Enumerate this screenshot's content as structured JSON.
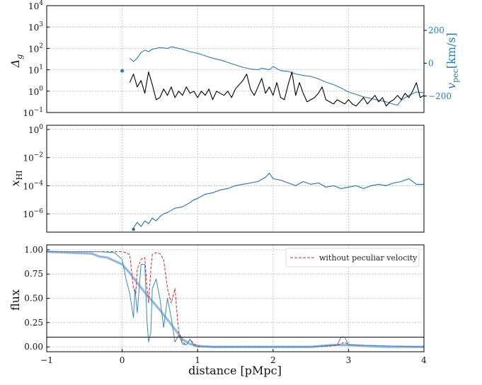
{
  "colors": {
    "density": "#000000",
    "velocity": "#2a7ab8",
    "xhi": "#1f6fb2",
    "flux_thin": "#3a8ac4",
    "flux_thick": "#92b9df",
    "no_pec": "#d62728",
    "threshold": "#000000",
    "grid": "#b8b8b8"
  },
  "chart_data": [
    {
      "id": "density-velocity",
      "type": "line",
      "x_range": [
        -1,
        4
      ],
      "y_left": {
        "label_main": "Δ",
        "label_sub": "g",
        "scale": "log",
        "range_exp": [
          -1,
          4
        ],
        "ticks": [
          {
            "b": "10",
            "e": "−1",
            "v": -1
          },
          {
            "b": "10",
            "e": "0",
            "v": 0
          },
          {
            "b": "10",
            "e": "1",
            "v": 1
          },
          {
            "b": "10",
            "e": "2",
            "v": 2
          },
          {
            "b": "10",
            "e": "3",
            "v": 3
          },
          {
            "b": "10",
            "e": "4",
            "v": 4
          }
        ]
      },
      "y_right": {
        "label_main": "v",
        "label_sub": "pec",
        "label_unit": "[km/s]",
        "range": [
          -300,
          350
        ],
        "ticks": [
          {
            "t": "200",
            "v": 200
          },
          {
            "t": "0",
            "v": 0
          },
          {
            "t": "−200",
            "v": -200
          }
        ]
      },
      "series": [
        {
          "key": "density",
          "axis": "left",
          "marker": {
            "x": 0.0,
            "y_exp": 0.95
          },
          "x": [
            0.1,
            0.15,
            0.2,
            0.25,
            0.3,
            0.35,
            0.4,
            0.45,
            0.5,
            0.55,
            0.6,
            0.65,
            0.7,
            0.75,
            0.8,
            0.85,
            0.9,
            0.95,
            1.0,
            1.05,
            1.1,
            1.15,
            1.2,
            1.25,
            1.3,
            1.35,
            1.4,
            1.45,
            1.5,
            1.55,
            1.6,
            1.65,
            1.7,
            1.75,
            1.8,
            1.85,
            1.9,
            1.95,
            2.0,
            2.05,
            2.1,
            2.15,
            2.2,
            2.25,
            2.3,
            2.35,
            2.4,
            2.45,
            2.5,
            2.55,
            2.6,
            2.65,
            2.7,
            2.75,
            2.8,
            2.85,
            2.9,
            2.95,
            3.0,
            3.05,
            3.1,
            3.15,
            3.2,
            3.25,
            3.3,
            3.35,
            3.4,
            3.45,
            3.5,
            3.55,
            3.6,
            3.65,
            3.7,
            3.75,
            3.8,
            3.85,
            3.9,
            3.95,
            4.0
          ],
          "y_exp": [
            0.4,
            0.8,
            0.2,
            0.5,
            -0.1,
            0.9,
            0.3,
            -0.4,
            -0.3,
            0.1,
            -0.2,
            0.2,
            -0.3,
            0.0,
            -0.2,
            0.2,
            -0.1,
            0.0,
            -0.3,
            0.0,
            -0.2,
            0.1,
            -0.4,
            0.0,
            -0.1,
            -0.2,
            0.0,
            -0.3,
            0.1,
            0.3,
            0.5,
            0.8,
            0.1,
            -0.2,
            0.2,
            0.6,
            -0.1,
            0.2,
            -0.2,
            0.4,
            -0.3,
            -0.4,
            0.3,
            0.9,
            -0.2,
            0.4,
            -0.1,
            -0.5,
            -0.4,
            -0.3,
            -0.1,
            0.2,
            -0.4,
            -0.5,
            -0.6,
            -0.4,
            -0.5,
            -0.6,
            -0.4,
            -0.6,
            -0.7,
            -0.5,
            -0.3,
            -0.6,
            -0.4,
            -0.2,
            -0.5,
            -0.3,
            -0.7,
            -0.5,
            -0.4,
            -0.2,
            -0.4,
            -0.1,
            -0.3,
            0.0,
            0.4,
            -0.3,
            -0.2
          ]
        },
        {
          "key": "velocity",
          "axis": "right",
          "x": [
            0.1,
            0.15,
            0.2,
            0.25,
            0.3,
            0.35,
            0.4,
            0.5,
            0.6,
            0.65,
            0.7,
            0.8,
            0.9,
            1.0,
            1.1,
            1.2,
            1.3,
            1.4,
            1.5,
            1.6,
            1.7,
            1.8,
            1.85,
            1.9,
            1.95,
            2.0,
            2.1,
            2.2,
            2.3,
            2.4,
            2.5,
            2.6,
            2.7,
            2.8,
            2.9,
            3.0,
            3.1,
            3.2,
            3.3,
            3.4,
            3.5,
            3.6,
            3.65,
            3.7,
            3.8,
            3.9,
            4.0
          ],
          "y": [
            30,
            10,
            30,
            65,
            80,
            70,
            85,
            95,
            90,
            100,
            95,
            85,
            70,
            60,
            45,
            30,
            20,
            5,
            -10,
            -25,
            -35,
            -40,
            -30,
            -35,
            -40,
            -20,
            -45,
            -50,
            -65,
            -75,
            -80,
            -95,
            -115,
            -130,
            -150,
            -175,
            -190,
            -205,
            -215,
            -225,
            -235,
            -250,
            -255,
            -225,
            -195,
            -175,
            -180
          ]
        }
      ]
    },
    {
      "id": "xhi",
      "type": "line",
      "x_range": [
        -1,
        4
      ],
      "y_left": {
        "label_main": "x",
        "label_sub": "HI",
        "scale": "log",
        "range_exp": [
          -7.3,
          0.3
        ],
        "ticks": [
          {
            "b": "10",
            "e": "0",
            "v": 0
          },
          {
            "b": "10",
            "e": "−2",
            "v": -2
          },
          {
            "b": "10",
            "e": "−4",
            "v": -4
          },
          {
            "b": "10",
            "e": "−6",
            "v": -6
          }
        ]
      },
      "series": [
        {
          "key": "xhi",
          "marker": {
            "x": 0.15,
            "y_exp": -7.1
          },
          "x": [
            0.15,
            0.2,
            0.25,
            0.3,
            0.35,
            0.4,
            0.45,
            0.5,
            0.55,
            0.6,
            0.7,
            0.8,
            0.9,
            0.95,
            1.0,
            1.1,
            1.2,
            1.3,
            1.4,
            1.5,
            1.6,
            1.7,
            1.8,
            1.9,
            1.95,
            2.0,
            2.1,
            2.2,
            2.3,
            2.4,
            2.5,
            2.6,
            2.7,
            2.8,
            2.9,
            3.0,
            3.1,
            3.2,
            3.3,
            3.4,
            3.5,
            3.6,
            3.7,
            3.8,
            3.9,
            4.0
          ],
          "y_exp": [
            -7.0,
            -6.6,
            -6.9,
            -6.5,
            -6.7,
            -6.3,
            -6.5,
            -6.2,
            -6.0,
            -5.9,
            -5.6,
            -5.5,
            -5.2,
            -5.0,
            -4.9,
            -4.6,
            -4.5,
            -4.3,
            -4.2,
            -4.0,
            -3.9,
            -3.8,
            -3.7,
            -3.4,
            -3.1,
            -3.5,
            -3.6,
            -3.8,
            -4.0,
            -3.7,
            -3.9,
            -3.8,
            -4.1,
            -4.0,
            -4.2,
            -4.1,
            -4.0,
            -4.2,
            -4.0,
            -3.9,
            -4.0,
            -3.8,
            -3.7,
            -3.5,
            -3.9,
            -3.9
          ]
        }
      ]
    },
    {
      "id": "flux",
      "type": "line",
      "x_range": [
        -1,
        4
      ],
      "xlabel": "distance [pMpc]",
      "x_ticks": [
        {
          "t": "−1",
          "v": -1
        },
        {
          "t": "0",
          "v": 0
        },
        {
          "t": "1",
          "v": 1
        },
        {
          "t": "2",
          "v": 2
        },
        {
          "t": "3",
          "v": 3
        },
        {
          "t": "4",
          "v": 4
        }
      ],
      "y_left": {
        "label_main": "flux",
        "range": [
          -0.05,
          1.05
        ],
        "ticks": [
          {
            "t": "1.00",
            "v": 1.0
          },
          {
            "t": "0.75",
            "v": 0.75
          },
          {
            "t": "0.50",
            "v": 0.5
          },
          {
            "t": "0.25",
            "v": 0.25
          },
          {
            "t": "0.00",
            "v": 0.0
          }
        ]
      },
      "threshold": 0.1,
      "legend": {
        "entry": "without peculiar velocity",
        "placement": "top-right"
      },
      "series": [
        {
          "key": "no_pec",
          "x": [
            -1,
            -0.5,
            0.0,
            0.05,
            0.1,
            0.15,
            0.18,
            0.2,
            0.25,
            0.3,
            0.33,
            0.35,
            0.38,
            0.4,
            0.45,
            0.5,
            0.55,
            0.6,
            0.65,
            0.7,
            0.72,
            0.75,
            0.8,
            0.85,
            0.9,
            0.95,
            1.0,
            1.1,
            1.5,
            2.0,
            2.5,
            2.8,
            2.9,
            2.95,
            3.0,
            3.5,
            4.0
          ],
          "y": [
            0.98,
            0.98,
            0.98,
            0.97,
            0.95,
            0.6,
            0.55,
            0.8,
            0.9,
            0.92,
            0.6,
            0.45,
            0.8,
            0.95,
            0.97,
            0.96,
            0.9,
            0.6,
            0.45,
            0.6,
            0.4,
            0.15,
            0.05,
            0.02,
            0.08,
            0.03,
            0.01,
            0.0,
            0.0,
            0.0,
            0.0,
            0.01,
            0.03,
            0.05,
            0.02,
            0.01,
            0.0
          ]
        },
        {
          "key": "flux_thin",
          "x": [
            -1,
            -0.5,
            -0.3,
            -0.1,
            0.0,
            0.05,
            0.1,
            0.15,
            0.17,
            0.2,
            0.25,
            0.3,
            0.33,
            0.35,
            0.38,
            0.4,
            0.45,
            0.5,
            0.55,
            0.6,
            0.65,
            0.7,
            0.75,
            0.8,
            0.85,
            0.9,
            0.95,
            1.0,
            1.2,
            1.5,
            2.0,
            2.5,
            2.85,
            2.9,
            2.95,
            3.0,
            3.5,
            4.0
          ],
          "y": [
            0.98,
            0.98,
            0.98,
            0.97,
            0.9,
            0.7,
            0.55,
            0.3,
            0.6,
            0.35,
            0.85,
            0.85,
            0.25,
            0.05,
            0.15,
            0.6,
            0.7,
            0.5,
            0.2,
            0.5,
            0.3,
            0.05,
            0.12,
            0.03,
            0.02,
            0.08,
            0.01,
            0.0,
            0.0,
            0.0,
            0.0,
            0.0,
            0.02,
            0.1,
            0.1,
            0.02,
            0.01,
            0.0
          ]
        },
        {
          "key": "flux_thick",
          "x": [
            -1,
            -0.7,
            -0.4,
            -0.3,
            -0.2,
            0.0,
            0.1,
            0.2,
            0.3,
            0.4,
            0.5,
            0.6,
            0.7,
            0.8,
            0.9,
            1.0,
            1.2,
            1.5,
            2.0,
            2.5,
            2.8,
            3.0,
            3.2,
            3.5,
            4.0
          ],
          "y": [
            0.98,
            0.97,
            0.96,
            0.93,
            0.92,
            0.85,
            0.76,
            0.66,
            0.56,
            0.47,
            0.38,
            0.28,
            0.18,
            0.08,
            0.03,
            0.01,
            0.0,
            0.0,
            0.0,
            0.0,
            0.02,
            0.02,
            0.01,
            0.0,
            0.0
          ]
        }
      ]
    }
  ]
}
